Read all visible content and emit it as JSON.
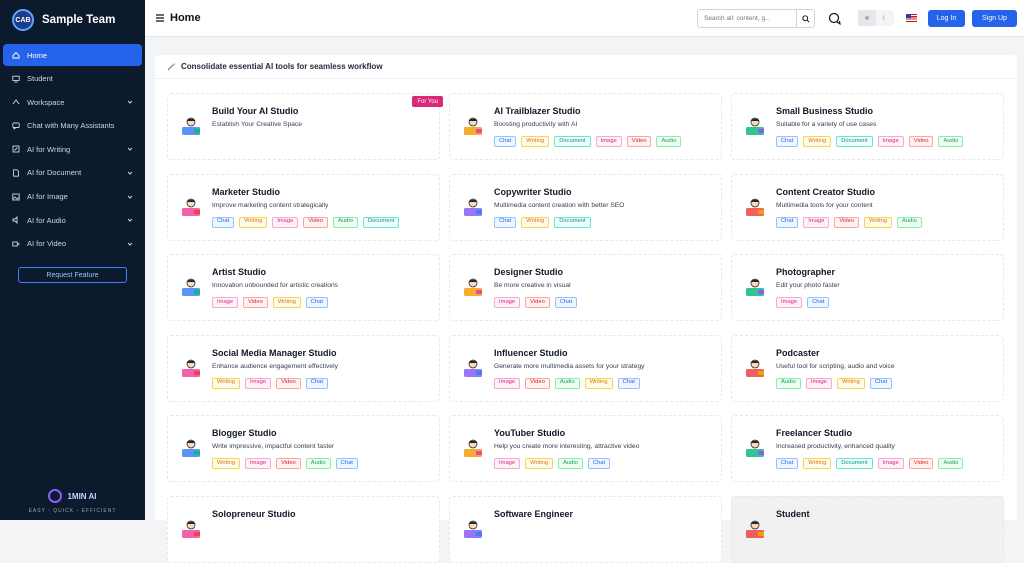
{
  "sidebar": {
    "brand": "Sample Team",
    "brand_logo_text": "CAB",
    "items": [
      {
        "label": "Home",
        "icon": "home-icon"
      },
      {
        "label": "Student",
        "icon": "monitor-icon"
      },
      {
        "label": "Workspace",
        "icon": "workspace-icon"
      },
      {
        "label": "Chat with Many Assistants",
        "icon": "chat-icon"
      },
      {
        "label": "AI for Writing",
        "icon": "pen-icon"
      },
      {
        "label": "AI for Document",
        "icon": "document-icon"
      },
      {
        "label": "AI for Image",
        "icon": "image-icon"
      },
      {
        "label": "AI for Audio",
        "icon": "audio-icon"
      },
      {
        "label": "AI for Video",
        "icon": "video-icon"
      }
    ],
    "request_feature": "Request Feature",
    "footer_name": "1MIN AI",
    "footer_tagline": "EASY - QUICK - EFFICIENT"
  },
  "topbar": {
    "title": "Home",
    "search_placeholder": "Search all: content, g...",
    "login": "Log In",
    "signup": "Sign Up"
  },
  "banner": "Consolidate essential AI tools for seamless workflow",
  "cards": [
    {
      "title": "Build Your AI Studio",
      "desc": "Establish Your Creative Space",
      "tags": [],
      "badge": "For You",
      "icon": "studio-builder-icon"
    },
    {
      "title": "AI Trailblazer Studio",
      "desc": "Boosting productivity with AI",
      "tags": [
        "Chat",
        "Writing",
        "Document",
        "Image",
        "Video",
        "Audio"
      ],
      "icon": "trailblazer-icon"
    },
    {
      "title": "Small Business Studio",
      "desc": "Suitable for a variety of use cases",
      "tags": [
        "Chat",
        "Writing",
        "Document",
        "Image",
        "Video",
        "Audio"
      ],
      "icon": "shop-icon"
    },
    {
      "title": "Marketer Studio",
      "desc": "Improve marketing content strategically",
      "tags": [
        "Chat",
        "Writing",
        "Image",
        "Video",
        "Audio",
        "Document"
      ],
      "icon": "marketer-icon"
    },
    {
      "title": "Copywriter Studio",
      "desc": "Multimedia content creation with better SEO",
      "tags": [
        "Chat",
        "Writing",
        "Document"
      ],
      "icon": "copywriter-icon"
    },
    {
      "title": "Content Creator Studio",
      "desc": "Multimedia tools for your content",
      "tags": [
        "Chat",
        "Image",
        "Video",
        "Writing",
        "Audio"
      ],
      "icon": "content-creator-icon"
    },
    {
      "title": "Artist Studio",
      "desc": "Innovation unbounded for artistic creations",
      "tags": [
        "Image",
        "Video",
        "Writing",
        "Chat"
      ],
      "icon": "artist-icon"
    },
    {
      "title": "Designer Studio",
      "desc": "Be more creative in visual",
      "tags": [
        "Image",
        "Video",
        "Chat"
      ],
      "icon": "designer-icon"
    },
    {
      "title": "Photographer",
      "desc": "Edit your photo faster",
      "tags": [
        "Image",
        "Chat"
      ],
      "icon": "photographer-icon"
    },
    {
      "title": "Social Media Manager Studio",
      "desc": "Enhance audience engagement effectively",
      "tags": [
        "Writing",
        "Image",
        "Video",
        "Chat"
      ],
      "icon": "social-media-icon"
    },
    {
      "title": "Influencer Studio",
      "desc": "Generate more multimedia assets for your strategy",
      "tags": [
        "Image",
        "Video",
        "Audio",
        "Writing",
        "Chat"
      ],
      "icon": "influencer-icon"
    },
    {
      "title": "Podcaster",
      "desc": "Useful tool for scripting, audio and voice",
      "tags": [
        "Audio",
        "Image",
        "Writing",
        "Chat"
      ],
      "icon": "podcaster-icon"
    },
    {
      "title": "Blogger Studio",
      "desc": "Write impressive, impactful content faster",
      "tags": [
        "Writing",
        "Image",
        "Video",
        "Audio",
        "Chat"
      ],
      "icon": "blogger-icon"
    },
    {
      "title": "YouTuber Studio",
      "desc": "Help you create more interesting, attractive video",
      "tags": [
        "Image",
        "Writing",
        "Audio",
        "Chat"
      ],
      "icon": "youtuber-icon"
    },
    {
      "title": "Freelancer Studio",
      "desc": "Increased productivity, enhanced quality",
      "tags": [
        "Chat",
        "Writing",
        "Document",
        "Image",
        "Video",
        "Audio"
      ],
      "icon": "freelancer-icon"
    },
    {
      "title": "Solopreneur Studio",
      "desc": "",
      "tags": [],
      "icon": "solopreneur-icon"
    },
    {
      "title": "Software Engineer",
      "desc": "",
      "tags": [],
      "icon": "engineer-icon"
    },
    {
      "title": "Student",
      "desc": "",
      "tags": [],
      "icon": "student-icon",
      "highlighted": true
    }
  ],
  "colors": {
    "accent": "#2563eb",
    "sidebar_bg": "#0c1a2e",
    "badge": "#db2777"
  }
}
